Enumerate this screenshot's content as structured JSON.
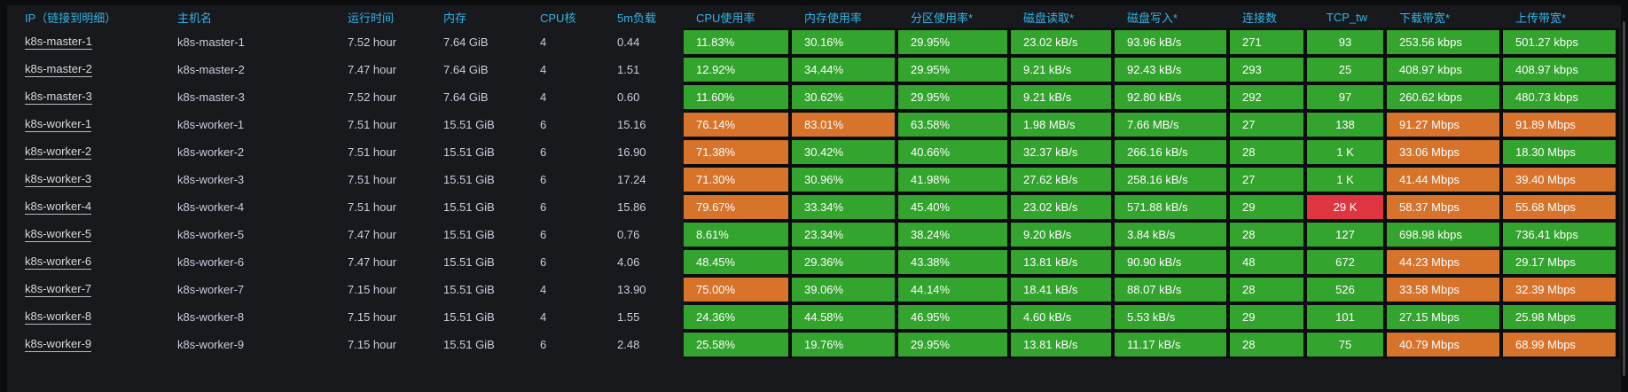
{
  "colors": {
    "green": "#33a42d",
    "orange": "#d7732b",
    "red": "#df3540",
    "header_text": "#33b5e5",
    "body_text": "#ccccdc"
  },
  "table": {
    "columns": [
      {
        "key": "ip",
        "label": "IP（链接到明细）",
        "type": "link"
      },
      {
        "key": "hostname",
        "label": "主机名",
        "type": "plain"
      },
      {
        "key": "uptime",
        "label": "运行时间",
        "type": "plain"
      },
      {
        "key": "memory",
        "label": "内存",
        "type": "plain"
      },
      {
        "key": "cpu_cores",
        "label": "CPU核",
        "type": "plain"
      },
      {
        "key": "load_5m",
        "label": "5m负载",
        "type": "plain"
      },
      {
        "key": "cpu_usage",
        "label": "CPU使用率",
        "type": "status"
      },
      {
        "key": "mem_usage",
        "label": "内存使用率",
        "type": "status"
      },
      {
        "key": "partition_usage",
        "label": "分区使用率*",
        "type": "status"
      },
      {
        "key": "disk_read",
        "label": "磁盘读取*",
        "type": "status"
      },
      {
        "key": "disk_write",
        "label": "磁盘写入*",
        "type": "status"
      },
      {
        "key": "connections",
        "label": "连接数",
        "type": "status"
      },
      {
        "key": "tcp_tw",
        "label": "TCP_tw",
        "type": "status",
        "align": "center"
      },
      {
        "key": "download_bw",
        "label": "下载带宽*",
        "type": "status"
      },
      {
        "key": "upload_bw",
        "label": "上传带宽*",
        "type": "status"
      }
    ],
    "rows": [
      {
        "ip": "k8s-master-1",
        "hostname": "k8s-master-1",
        "uptime": "7.52 hour",
        "memory": "7.64 GiB",
        "cpu_cores": "4",
        "load_5m": "0.44",
        "cpu_usage": {
          "text": "11.83%",
          "status": "green"
        },
        "mem_usage": {
          "text": "30.16%",
          "status": "green"
        },
        "partition_usage": {
          "text": "29.95%",
          "status": "green"
        },
        "disk_read": {
          "text": "23.02 kB/s",
          "status": "green"
        },
        "disk_write": {
          "text": "93.96 kB/s",
          "status": "green"
        },
        "connections": {
          "text": "271",
          "status": "green"
        },
        "tcp_tw": {
          "text": "93",
          "status": "green"
        },
        "download_bw": {
          "text": "253.56 kbps",
          "status": "green"
        },
        "upload_bw": {
          "text": "501.27 kbps",
          "status": "green"
        }
      },
      {
        "ip": "k8s-master-2",
        "hostname": "k8s-master-2",
        "uptime": "7.47 hour",
        "memory": "7.64 GiB",
        "cpu_cores": "4",
        "load_5m": "1.51",
        "cpu_usage": {
          "text": "12.92%",
          "status": "green"
        },
        "mem_usage": {
          "text": "34.44%",
          "status": "green"
        },
        "partition_usage": {
          "text": "29.95%",
          "status": "green"
        },
        "disk_read": {
          "text": "9.21 kB/s",
          "status": "green"
        },
        "disk_write": {
          "text": "92.43 kB/s",
          "status": "green"
        },
        "connections": {
          "text": "293",
          "status": "green"
        },
        "tcp_tw": {
          "text": "25",
          "status": "green"
        },
        "download_bw": {
          "text": "408.97 kbps",
          "status": "green"
        },
        "upload_bw": {
          "text": "408.97 kbps",
          "status": "green"
        }
      },
      {
        "ip": "k8s-master-3",
        "hostname": "k8s-master-3",
        "uptime": "7.52 hour",
        "memory": "7.64 GiB",
        "cpu_cores": "4",
        "load_5m": "0.60",
        "cpu_usage": {
          "text": "11.60%",
          "status": "green"
        },
        "mem_usage": {
          "text": "30.62%",
          "status": "green"
        },
        "partition_usage": {
          "text": "29.95%",
          "status": "green"
        },
        "disk_read": {
          "text": "9.21 kB/s",
          "status": "green"
        },
        "disk_write": {
          "text": "92.80 kB/s",
          "status": "green"
        },
        "connections": {
          "text": "292",
          "status": "green"
        },
        "tcp_tw": {
          "text": "97",
          "status": "green"
        },
        "download_bw": {
          "text": "260.62 kbps",
          "status": "green"
        },
        "upload_bw": {
          "text": "480.73 kbps",
          "status": "green"
        }
      },
      {
        "ip": "k8s-worker-1",
        "hostname": "k8s-worker-1",
        "uptime": "7.51 hour",
        "memory": "15.51 GiB",
        "cpu_cores": "6",
        "load_5m": "15.16",
        "cpu_usage": {
          "text": "76.14%",
          "status": "orange"
        },
        "mem_usage": {
          "text": "83.01%",
          "status": "orange"
        },
        "partition_usage": {
          "text": "63.58%",
          "status": "green"
        },
        "disk_read": {
          "text": "1.98 MB/s",
          "status": "green"
        },
        "disk_write": {
          "text": "7.66 MB/s",
          "status": "green"
        },
        "connections": {
          "text": "27",
          "status": "green"
        },
        "tcp_tw": {
          "text": "138",
          "status": "green"
        },
        "download_bw": {
          "text": "91.27 Mbps",
          "status": "orange"
        },
        "upload_bw": {
          "text": "91.89 Mbps",
          "status": "orange"
        }
      },
      {
        "ip": "k8s-worker-2",
        "hostname": "k8s-worker-2",
        "uptime": "7.51 hour",
        "memory": "15.51 GiB",
        "cpu_cores": "6",
        "load_5m": "16.90",
        "cpu_usage": {
          "text": "71.38%",
          "status": "orange"
        },
        "mem_usage": {
          "text": "30.42%",
          "status": "green"
        },
        "partition_usage": {
          "text": "40.66%",
          "status": "green"
        },
        "disk_read": {
          "text": "32.37 kB/s",
          "status": "green"
        },
        "disk_write": {
          "text": "266.16 kB/s",
          "status": "green"
        },
        "connections": {
          "text": "28",
          "status": "green"
        },
        "tcp_tw": {
          "text": "1 K",
          "status": "green"
        },
        "download_bw": {
          "text": "33.06 Mbps",
          "status": "orange"
        },
        "upload_bw": {
          "text": "18.30 Mbps",
          "status": "green"
        }
      },
      {
        "ip": "k8s-worker-3",
        "hostname": "k8s-worker-3",
        "uptime": "7.51 hour",
        "memory": "15.51 GiB",
        "cpu_cores": "6",
        "load_5m": "17.24",
        "cpu_usage": {
          "text": "71.30%",
          "status": "orange"
        },
        "mem_usage": {
          "text": "30.96%",
          "status": "green"
        },
        "partition_usage": {
          "text": "41.98%",
          "status": "green"
        },
        "disk_read": {
          "text": "27.62 kB/s",
          "status": "green"
        },
        "disk_write": {
          "text": "258.16 kB/s",
          "status": "green"
        },
        "connections": {
          "text": "27",
          "status": "green"
        },
        "tcp_tw": {
          "text": "1 K",
          "status": "green"
        },
        "download_bw": {
          "text": "41.44 Mbps",
          "status": "orange"
        },
        "upload_bw": {
          "text": "39.40 Mbps",
          "status": "orange"
        }
      },
      {
        "ip": "k8s-worker-4",
        "hostname": "k8s-worker-4",
        "uptime": "7.51 hour",
        "memory": "15.51 GiB",
        "cpu_cores": "6",
        "load_5m": "15.86",
        "cpu_usage": {
          "text": "79.67%",
          "status": "orange"
        },
        "mem_usage": {
          "text": "33.34%",
          "status": "green"
        },
        "partition_usage": {
          "text": "45.40%",
          "status": "green"
        },
        "disk_read": {
          "text": "23.02 kB/s",
          "status": "green"
        },
        "disk_write": {
          "text": "571.88 kB/s",
          "status": "green"
        },
        "connections": {
          "text": "29",
          "status": "green"
        },
        "tcp_tw": {
          "text": "29 K",
          "status": "red"
        },
        "download_bw": {
          "text": "58.37 Mbps",
          "status": "orange"
        },
        "upload_bw": {
          "text": "55.68 Mbps",
          "status": "orange"
        }
      },
      {
        "ip": "k8s-worker-5",
        "hostname": "k8s-worker-5",
        "uptime": "7.47 hour",
        "memory": "15.51 GiB",
        "cpu_cores": "6",
        "load_5m": "0.76",
        "cpu_usage": {
          "text": "8.61%",
          "status": "green"
        },
        "mem_usage": {
          "text": "23.34%",
          "status": "green"
        },
        "partition_usage": {
          "text": "38.24%",
          "status": "green"
        },
        "disk_read": {
          "text": "9.20 kB/s",
          "status": "green"
        },
        "disk_write": {
          "text": "3.84 kB/s",
          "status": "green"
        },
        "connections": {
          "text": "28",
          "status": "green"
        },
        "tcp_tw": {
          "text": "127",
          "status": "green"
        },
        "download_bw": {
          "text": "698.98 kbps",
          "status": "green"
        },
        "upload_bw": {
          "text": "736.41 kbps",
          "status": "green"
        }
      },
      {
        "ip": "k8s-worker-6",
        "hostname": "k8s-worker-6",
        "uptime": "7.47 hour",
        "memory": "15.51 GiB",
        "cpu_cores": "6",
        "load_5m": "4.06",
        "cpu_usage": {
          "text": "48.45%",
          "status": "green"
        },
        "mem_usage": {
          "text": "29.36%",
          "status": "green"
        },
        "partition_usage": {
          "text": "43.38%",
          "status": "green"
        },
        "disk_read": {
          "text": "13.81 kB/s",
          "status": "green"
        },
        "disk_write": {
          "text": "90.90 kB/s",
          "status": "green"
        },
        "connections": {
          "text": "48",
          "status": "green"
        },
        "tcp_tw": {
          "text": "672",
          "status": "green"
        },
        "download_bw": {
          "text": "44.23 Mbps",
          "status": "orange"
        },
        "upload_bw": {
          "text": "29.17 Mbps",
          "status": "green"
        }
      },
      {
        "ip": "k8s-worker-7",
        "hostname": "k8s-worker-7",
        "uptime": "7.15 hour",
        "memory": "15.51 GiB",
        "cpu_cores": "4",
        "load_5m": "13.90",
        "cpu_usage": {
          "text": "75.00%",
          "status": "orange"
        },
        "mem_usage": {
          "text": "39.06%",
          "status": "green"
        },
        "partition_usage": {
          "text": "44.14%",
          "status": "green"
        },
        "disk_read": {
          "text": "18.41 kB/s",
          "status": "green"
        },
        "disk_write": {
          "text": "88.07 kB/s",
          "status": "green"
        },
        "connections": {
          "text": "28",
          "status": "green"
        },
        "tcp_tw": {
          "text": "526",
          "status": "green"
        },
        "download_bw": {
          "text": "33.58 Mbps",
          "status": "orange"
        },
        "upload_bw": {
          "text": "32.39 Mbps",
          "status": "orange"
        }
      },
      {
        "ip": "k8s-worker-8",
        "hostname": "k8s-worker-8",
        "uptime": "7.15 hour",
        "memory": "15.51 GiB",
        "cpu_cores": "4",
        "load_5m": "1.55",
        "cpu_usage": {
          "text": "24.36%",
          "status": "green"
        },
        "mem_usage": {
          "text": "44.58%",
          "status": "green"
        },
        "partition_usage": {
          "text": "46.95%",
          "status": "green"
        },
        "disk_read": {
          "text": "4.60 kB/s",
          "status": "green"
        },
        "disk_write": {
          "text": "5.53 kB/s",
          "status": "green"
        },
        "connections": {
          "text": "29",
          "status": "green"
        },
        "tcp_tw": {
          "text": "101",
          "status": "green"
        },
        "download_bw": {
          "text": "27.15 Mbps",
          "status": "green"
        },
        "upload_bw": {
          "text": "25.98 Mbps",
          "status": "green"
        }
      },
      {
        "ip": "k8s-worker-9",
        "hostname": "k8s-worker-9",
        "uptime": "7.15 hour",
        "memory": "15.51 GiB",
        "cpu_cores": "6",
        "load_5m": "2.48",
        "cpu_usage": {
          "text": "25.58%",
          "status": "green"
        },
        "mem_usage": {
          "text": "19.76%",
          "status": "green"
        },
        "partition_usage": {
          "text": "29.95%",
          "status": "green"
        },
        "disk_read": {
          "text": "13.81 kB/s",
          "status": "green"
        },
        "disk_write": {
          "text": "11.17 kB/s",
          "status": "green"
        },
        "connections": {
          "text": "28",
          "status": "green"
        },
        "tcp_tw": {
          "text": "75",
          "status": "green"
        },
        "download_bw": {
          "text": "40.79 Mbps",
          "status": "orange"
        },
        "upload_bw": {
          "text": "68.99 Mbps",
          "status": "orange"
        }
      }
    ]
  }
}
